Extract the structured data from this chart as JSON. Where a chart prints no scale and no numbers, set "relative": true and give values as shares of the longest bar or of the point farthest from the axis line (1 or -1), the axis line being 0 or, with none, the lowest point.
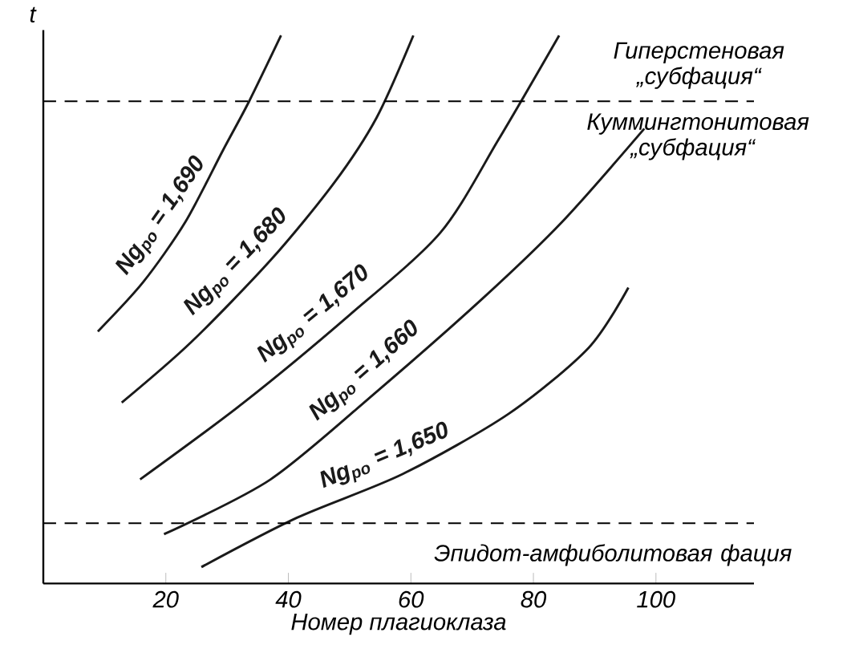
{
  "chart_data": {
    "type": "line",
    "relative": true,
    "xlabel": "Номер плагиоклаза",
    "ylabel": "t",
    "xlim": [
      0,
      116
    ],
    "xticks": [
      20,
      40,
      60,
      80,
      100
    ],
    "grid": false,
    "marker": "none",
    "line_style": "solid",
    "series": [
      {
        "name": "Ng$_{po}$ = 1,690",
        "color": "#1a1a1a",
        "x": [
          8.9,
          16.3,
          23.2,
          29.3,
          33.6,
          38.8
        ],
        "values": [
          0.46,
          0.55,
          0.66,
          0.79,
          0.88,
          1.0
        ]
      },
      {
        "name": "Ng$_{po}$ = 1,680",
        "color": "#1a1a1a",
        "x": [
          12.8,
          24.1,
          37.1,
          47.4,
          54.4,
          60.4
        ],
        "values": [
          0.33,
          0.44,
          0.59,
          0.73,
          0.85,
          1.0
        ]
      },
      {
        "name": "Ng$_{po}$ = 1,670",
        "color": "#1a1a1a",
        "x": [
          15.8,
          32.7,
          50.0,
          64.8,
          74.3,
          84.2
        ],
        "values": [
          0.19,
          0.33,
          0.49,
          0.64,
          0.81,
          1.0
        ]
      },
      {
        "name": "Ng$_{po}$ = 1,660",
        "color": "#1a1a1a",
        "x": [
          19.7,
          37.1,
          54.4,
          71.7,
          84.7,
          98.1
        ],
        "values": [
          0.09,
          0.19,
          0.35,
          0.52,
          0.66,
          0.83
        ]
      },
      {
        "name": "Ng$_{po}$ = 1,650",
        "color": "#1a1a1a",
        "x": [
          25.8,
          41.4,
          58.7,
          76.0,
          89.0,
          95.5
        ],
        "values": [
          0.03,
          0.12,
          0.2,
          0.31,
          0.43,
          0.54
        ]
      }
    ],
    "ref_lines": [
      {
        "axis": "y",
        "value": 0.88,
        "line_style": "dashed"
      },
      {
        "axis": "y",
        "value": 0.11,
        "line_style": "dashed"
      }
    ],
    "annotations": [
      "Гиперстеновая „субфация“",
      "Куммингтонитовая „субфация“",
      "Эпидот-амфиболитовая фация"
    ]
  }
}
